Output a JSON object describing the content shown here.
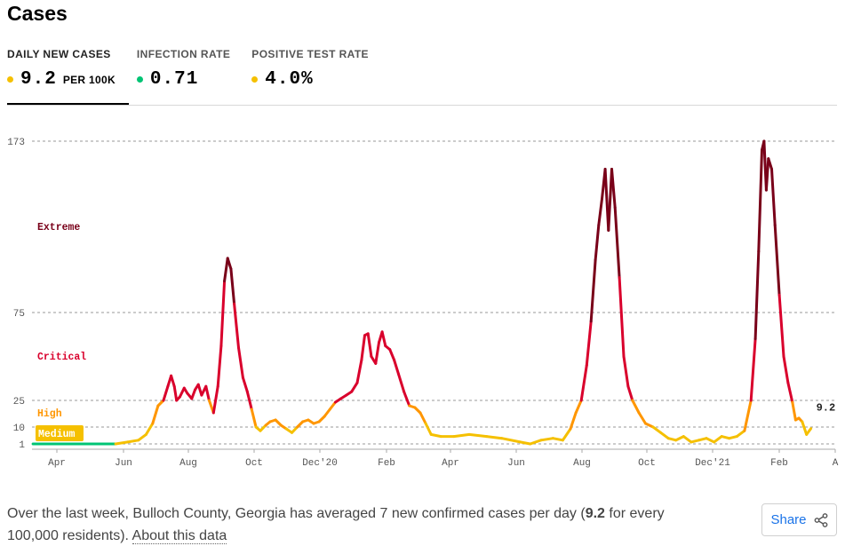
{
  "title": "Cases",
  "metrics": [
    {
      "label": "DAILY NEW CASES",
      "value": "9.2",
      "unit": "PER 100K",
      "dot_color": "#f5c000",
      "selected": true
    },
    {
      "label": "INFECTION RATE",
      "value": "0.71",
      "unit": "",
      "dot_color": "#00c474",
      "selected": false
    },
    {
      "label": "POSITIVE TEST RATE",
      "value": "4.0%",
      "unit": "",
      "dot_color": "#f5c000",
      "selected": false
    }
  ],
  "footer": {
    "text_before": "Over the last week, Bulloch County, Georgia has averaged 7 new confirmed cases per day (",
    "highlight": "9.2",
    "text_after": " for every 100,000 residents).",
    "about_link": "About this data"
  },
  "share_label": "Share",
  "colors": {
    "low": "#00c474",
    "medium": "#f5c000",
    "high": "#ff9600",
    "critical": "#d9002c",
    "extreme": "#790019"
  },
  "chart_data": {
    "type": "line",
    "title": "",
    "xlabel": "",
    "ylabel": "",
    "y_ticks": [
      1,
      10,
      25,
      75,
      173
    ],
    "ylim": [
      0,
      173
    ],
    "x_ticks": [
      "Apr",
      "Jun",
      "Aug",
      "Oct",
      "Dec'20",
      "Feb",
      "Apr",
      "Jun",
      "Aug",
      "Oct",
      "Dec'21",
      "Feb",
      "A"
    ],
    "zones": [
      {
        "label": "Medium",
        "min": 1,
        "max": 10
      },
      {
        "label": "High",
        "min": 10,
        "max": 25
      },
      {
        "label": "Critical",
        "min": 25,
        "max": 75
      },
      {
        "label": "Extreme",
        "min": 75,
        "max": 173
      }
    ],
    "end_label": "9.2",
    "series": [
      {
        "values": [
          [
            "2020-03-10",
            0
          ],
          [
            "2020-03-25",
            1
          ],
          [
            "2020-04-10",
            0.5
          ],
          [
            "2020-04-25",
            0.5
          ],
          [
            "2020-05-10",
            0.5
          ],
          [
            "2020-05-25",
            0.5
          ],
          [
            "2020-06-05",
            2
          ],
          [
            "2020-06-15",
            3
          ],
          [
            "2020-06-22",
            6
          ],
          [
            "2020-06-28",
            12
          ],
          [
            "2020-07-03",
            22
          ],
          [
            "2020-07-08",
            25
          ],
          [
            "2020-07-12",
            33
          ],
          [
            "2020-07-15",
            39
          ],
          [
            "2020-07-18",
            33
          ],
          [
            "2020-07-20",
            25
          ],
          [
            "2020-07-23",
            27
          ],
          [
            "2020-07-27",
            32
          ],
          [
            "2020-07-30",
            29
          ],
          [
            "2020-08-03",
            26
          ],
          [
            "2020-08-06",
            31
          ],
          [
            "2020-08-09",
            34
          ],
          [
            "2020-08-12",
            28
          ],
          [
            "2020-08-16",
            33
          ],
          [
            "2020-08-19",
            25
          ],
          [
            "2020-08-23",
            18
          ],
          [
            "2020-08-27",
            33
          ],
          [
            "2020-08-30",
            56
          ],
          [
            "2020-09-02",
            93
          ],
          [
            "2020-09-05",
            106
          ],
          [
            "2020-09-08",
            100
          ],
          [
            "2020-09-11",
            80
          ],
          [
            "2020-09-15",
            55
          ],
          [
            "2020-09-19",
            38
          ],
          [
            "2020-09-23",
            30
          ],
          [
            "2020-09-27",
            20
          ],
          [
            "2020-10-01",
            10
          ],
          [
            "2020-10-05",
            8
          ],
          [
            "2020-10-10",
            11
          ],
          [
            "2020-10-14",
            13
          ],
          [
            "2020-10-19",
            14
          ],
          [
            "2020-10-24",
            11
          ],
          [
            "2020-10-29",
            9
          ],
          [
            "2020-11-03",
            7
          ],
          [
            "2020-11-08",
            10
          ],
          [
            "2020-11-13",
            13
          ],
          [
            "2020-11-18",
            14
          ],
          [
            "2020-11-23",
            12
          ],
          [
            "2020-11-28",
            13
          ],
          [
            "2020-12-03",
            16
          ],
          [
            "2020-12-08",
            20
          ],
          [
            "2020-12-13",
            24
          ],
          [
            "2020-12-18",
            26
          ],
          [
            "2020-12-23",
            28
          ],
          [
            "2020-12-28",
            30
          ],
          [
            "2021-01-02",
            35
          ],
          [
            "2021-01-06",
            48
          ],
          [
            "2021-01-09",
            62
          ],
          [
            "2021-01-12",
            63
          ],
          [
            "2021-01-15",
            50
          ],
          [
            "2021-01-19",
            46
          ],
          [
            "2021-01-22",
            58
          ],
          [
            "2021-01-25",
            64
          ],
          [
            "2021-01-28",
            56
          ],
          [
            "2021-02-01",
            54
          ],
          [
            "2021-02-05",
            48
          ],
          [
            "2021-02-09",
            40
          ],
          [
            "2021-02-14",
            30
          ],
          [
            "2021-02-19",
            22
          ],
          [
            "2021-02-24",
            21
          ],
          [
            "2021-03-01",
            18
          ],
          [
            "2021-03-06",
            12
          ],
          [
            "2021-03-11",
            6
          ],
          [
            "2021-03-20",
            5
          ],
          [
            "2021-04-01",
            5
          ],
          [
            "2021-04-15",
            6
          ],
          [
            "2021-05-01",
            5
          ],
          [
            "2021-05-15",
            4
          ],
          [
            "2021-06-01",
            2
          ],
          [
            "2021-06-10",
            1
          ],
          [
            "2021-06-20",
            3
          ],
          [
            "2021-07-01",
            4
          ],
          [
            "2021-07-10",
            3
          ],
          [
            "2021-07-17",
            9
          ],
          [
            "2021-07-22",
            18
          ],
          [
            "2021-07-27",
            25
          ],
          [
            "2021-08-01",
            45
          ],
          [
            "2021-08-05",
            70
          ],
          [
            "2021-08-09",
            105
          ],
          [
            "2021-08-12",
            125
          ],
          [
            "2021-08-15",
            140
          ],
          [
            "2021-08-18",
            157
          ],
          [
            "2021-08-21",
            122
          ],
          [
            "2021-08-24",
            157
          ],
          [
            "2021-08-27",
            135
          ],
          [
            "2021-08-31",
            95
          ],
          [
            "2021-09-04",
            50
          ],
          [
            "2021-09-08",
            33
          ],
          [
            "2021-09-12",
            25
          ],
          [
            "2021-09-18",
            18
          ],
          [
            "2021-09-24",
            12
          ],
          [
            "2021-10-01",
            10
          ],
          [
            "2021-10-08",
            7
          ],
          [
            "2021-10-15",
            4
          ],
          [
            "2021-10-22",
            3
          ],
          [
            "2021-10-29",
            5
          ],
          [
            "2021-11-05",
            2
          ],
          [
            "2021-11-12",
            3
          ],
          [
            "2021-11-19",
            4
          ],
          [
            "2021-11-26",
            2
          ],
          [
            "2021-12-03",
            5
          ],
          [
            "2021-12-10",
            4
          ],
          [
            "2021-12-17",
            5
          ],
          [
            "2021-12-24",
            8
          ],
          [
            "2021-12-30",
            25
          ],
          [
            "2022-01-03",
            60
          ],
          [
            "2022-01-06",
            110
          ],
          [
            "2022-01-09",
            168
          ],
          [
            "2022-01-11",
            173
          ],
          [
            "2022-01-13",
            145
          ],
          [
            "2022-01-15",
            163
          ],
          [
            "2022-01-18",
            157
          ],
          [
            "2022-01-21",
            125
          ],
          [
            "2022-01-25",
            85
          ],
          [
            "2022-01-29",
            50
          ],
          [
            "2022-02-02",
            35
          ],
          [
            "2022-02-06",
            24
          ],
          [
            "2022-02-09",
            14
          ],
          [
            "2022-02-12",
            15
          ],
          [
            "2022-02-15",
            13
          ],
          [
            "2022-02-19",
            6
          ],
          [
            "2022-02-23",
            9.2
          ]
        ]
      }
    ]
  }
}
